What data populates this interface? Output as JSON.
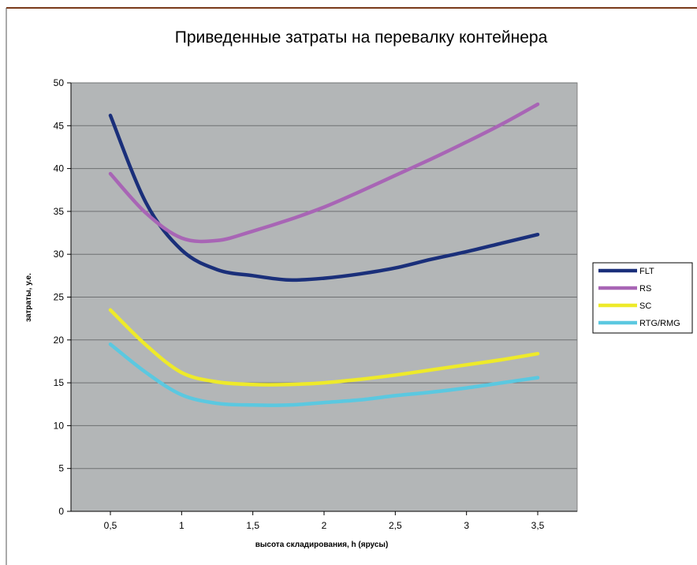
{
  "chart_data": {
    "type": "line",
    "title": "Приведенные затраты на перевалку контейнера",
    "xlabel": "высота складирования, h (ярусы)",
    "ylabel": "затраты, у.е.",
    "x": [
      0.5,
      0.75,
      1,
      1.25,
      1.5,
      1.75,
      2,
      2.25,
      2.5,
      2.75,
      3,
      3.25,
      3.5
    ],
    "x_tick_labels": [
      "0,5",
      "1",
      "1,5",
      "2",
      "2,5",
      "3",
      "3,5"
    ],
    "x_tick_values": [
      0.5,
      1,
      1.5,
      2,
      2.5,
      3,
      3.5
    ],
    "y_ticks": [
      0,
      5,
      10,
      15,
      20,
      25,
      30,
      35,
      40,
      45,
      50
    ],
    "xlim": [
      0.5,
      3.5
    ],
    "ylim": [
      0,
      50
    ],
    "grid": true,
    "legend_position": "right",
    "plot_background": "#b3b6b7",
    "series": [
      {
        "name": "FLT",
        "color": "#1a2f7a",
        "values": [
          46.2,
          36.0,
          30.5,
          28.2,
          27.5,
          27.0,
          27.2,
          27.7,
          28.4,
          29.4,
          30.3,
          31.3,
          32.3
        ]
      },
      {
        "name": "RS",
        "color": "#a865b5",
        "values": [
          39.4,
          34.8,
          31.9,
          31.6,
          32.7,
          34.0,
          35.5,
          37.3,
          39.2,
          41.1,
          43.1,
          45.2,
          47.5
        ]
      },
      {
        "name": "SC",
        "color": "#eeea2a",
        "values": [
          23.5,
          19.4,
          16.2,
          15.1,
          14.8,
          14.8,
          15.0,
          15.4,
          15.9,
          16.5,
          17.1,
          17.7,
          18.4
        ]
      },
      {
        "name": "RTG/RMG",
        "color": "#5bc8e0",
        "values": [
          19.5,
          16.2,
          13.6,
          12.6,
          12.4,
          12.4,
          12.7,
          13.0,
          13.5,
          13.9,
          14.4,
          15.0,
          15.6
        ]
      }
    ]
  }
}
